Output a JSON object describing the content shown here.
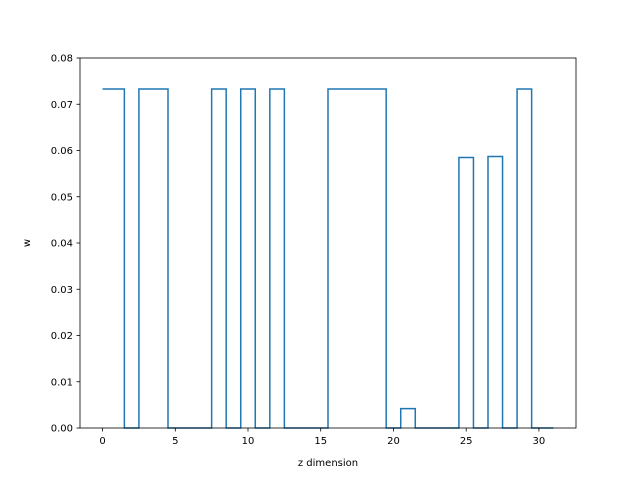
{
  "chart_data": {
    "type": "line",
    "drawstyle": "steps-mid",
    "title": "",
    "xlabel": "z dimension",
    "ylabel": "w",
    "xlim": [
      -1.55,
      32.55
    ],
    "ylim": [
      0,
      0.08
    ],
    "xticks": [
      0,
      5,
      10,
      15,
      20,
      25,
      30
    ],
    "yticks": [
      0.0,
      0.01,
      0.02,
      0.03,
      0.04,
      0.05,
      0.06,
      0.07,
      0.08
    ],
    "ytick_labels": [
      "0.00",
      "0.01",
      "0.02",
      "0.03",
      "0.04",
      "0.05",
      "0.06",
      "0.07",
      "0.08"
    ],
    "grid": false,
    "series": [
      {
        "color": "#1f77b4",
        "x": [
          0,
          1,
          2,
          3,
          4,
          5,
          6,
          7,
          8,
          9,
          10,
          11,
          12,
          13,
          14,
          15,
          16,
          17,
          18,
          19,
          20,
          21,
          22,
          23,
          24,
          25,
          26,
          27,
          28,
          29,
          30,
          31
        ],
        "y": [
          0.0733,
          0.0733,
          0,
          0.0733,
          0.0733,
          0,
          0,
          0,
          0.0733,
          0,
          0.0733,
          0,
          0.0733,
          0,
          0,
          0,
          0.0733,
          0.0733,
          0.0733,
          0.0733,
          0,
          0.0042,
          0,
          0,
          0,
          0.0585,
          0,
          0.0587,
          0,
          0.0733,
          0,
          0
        ]
      }
    ]
  }
}
